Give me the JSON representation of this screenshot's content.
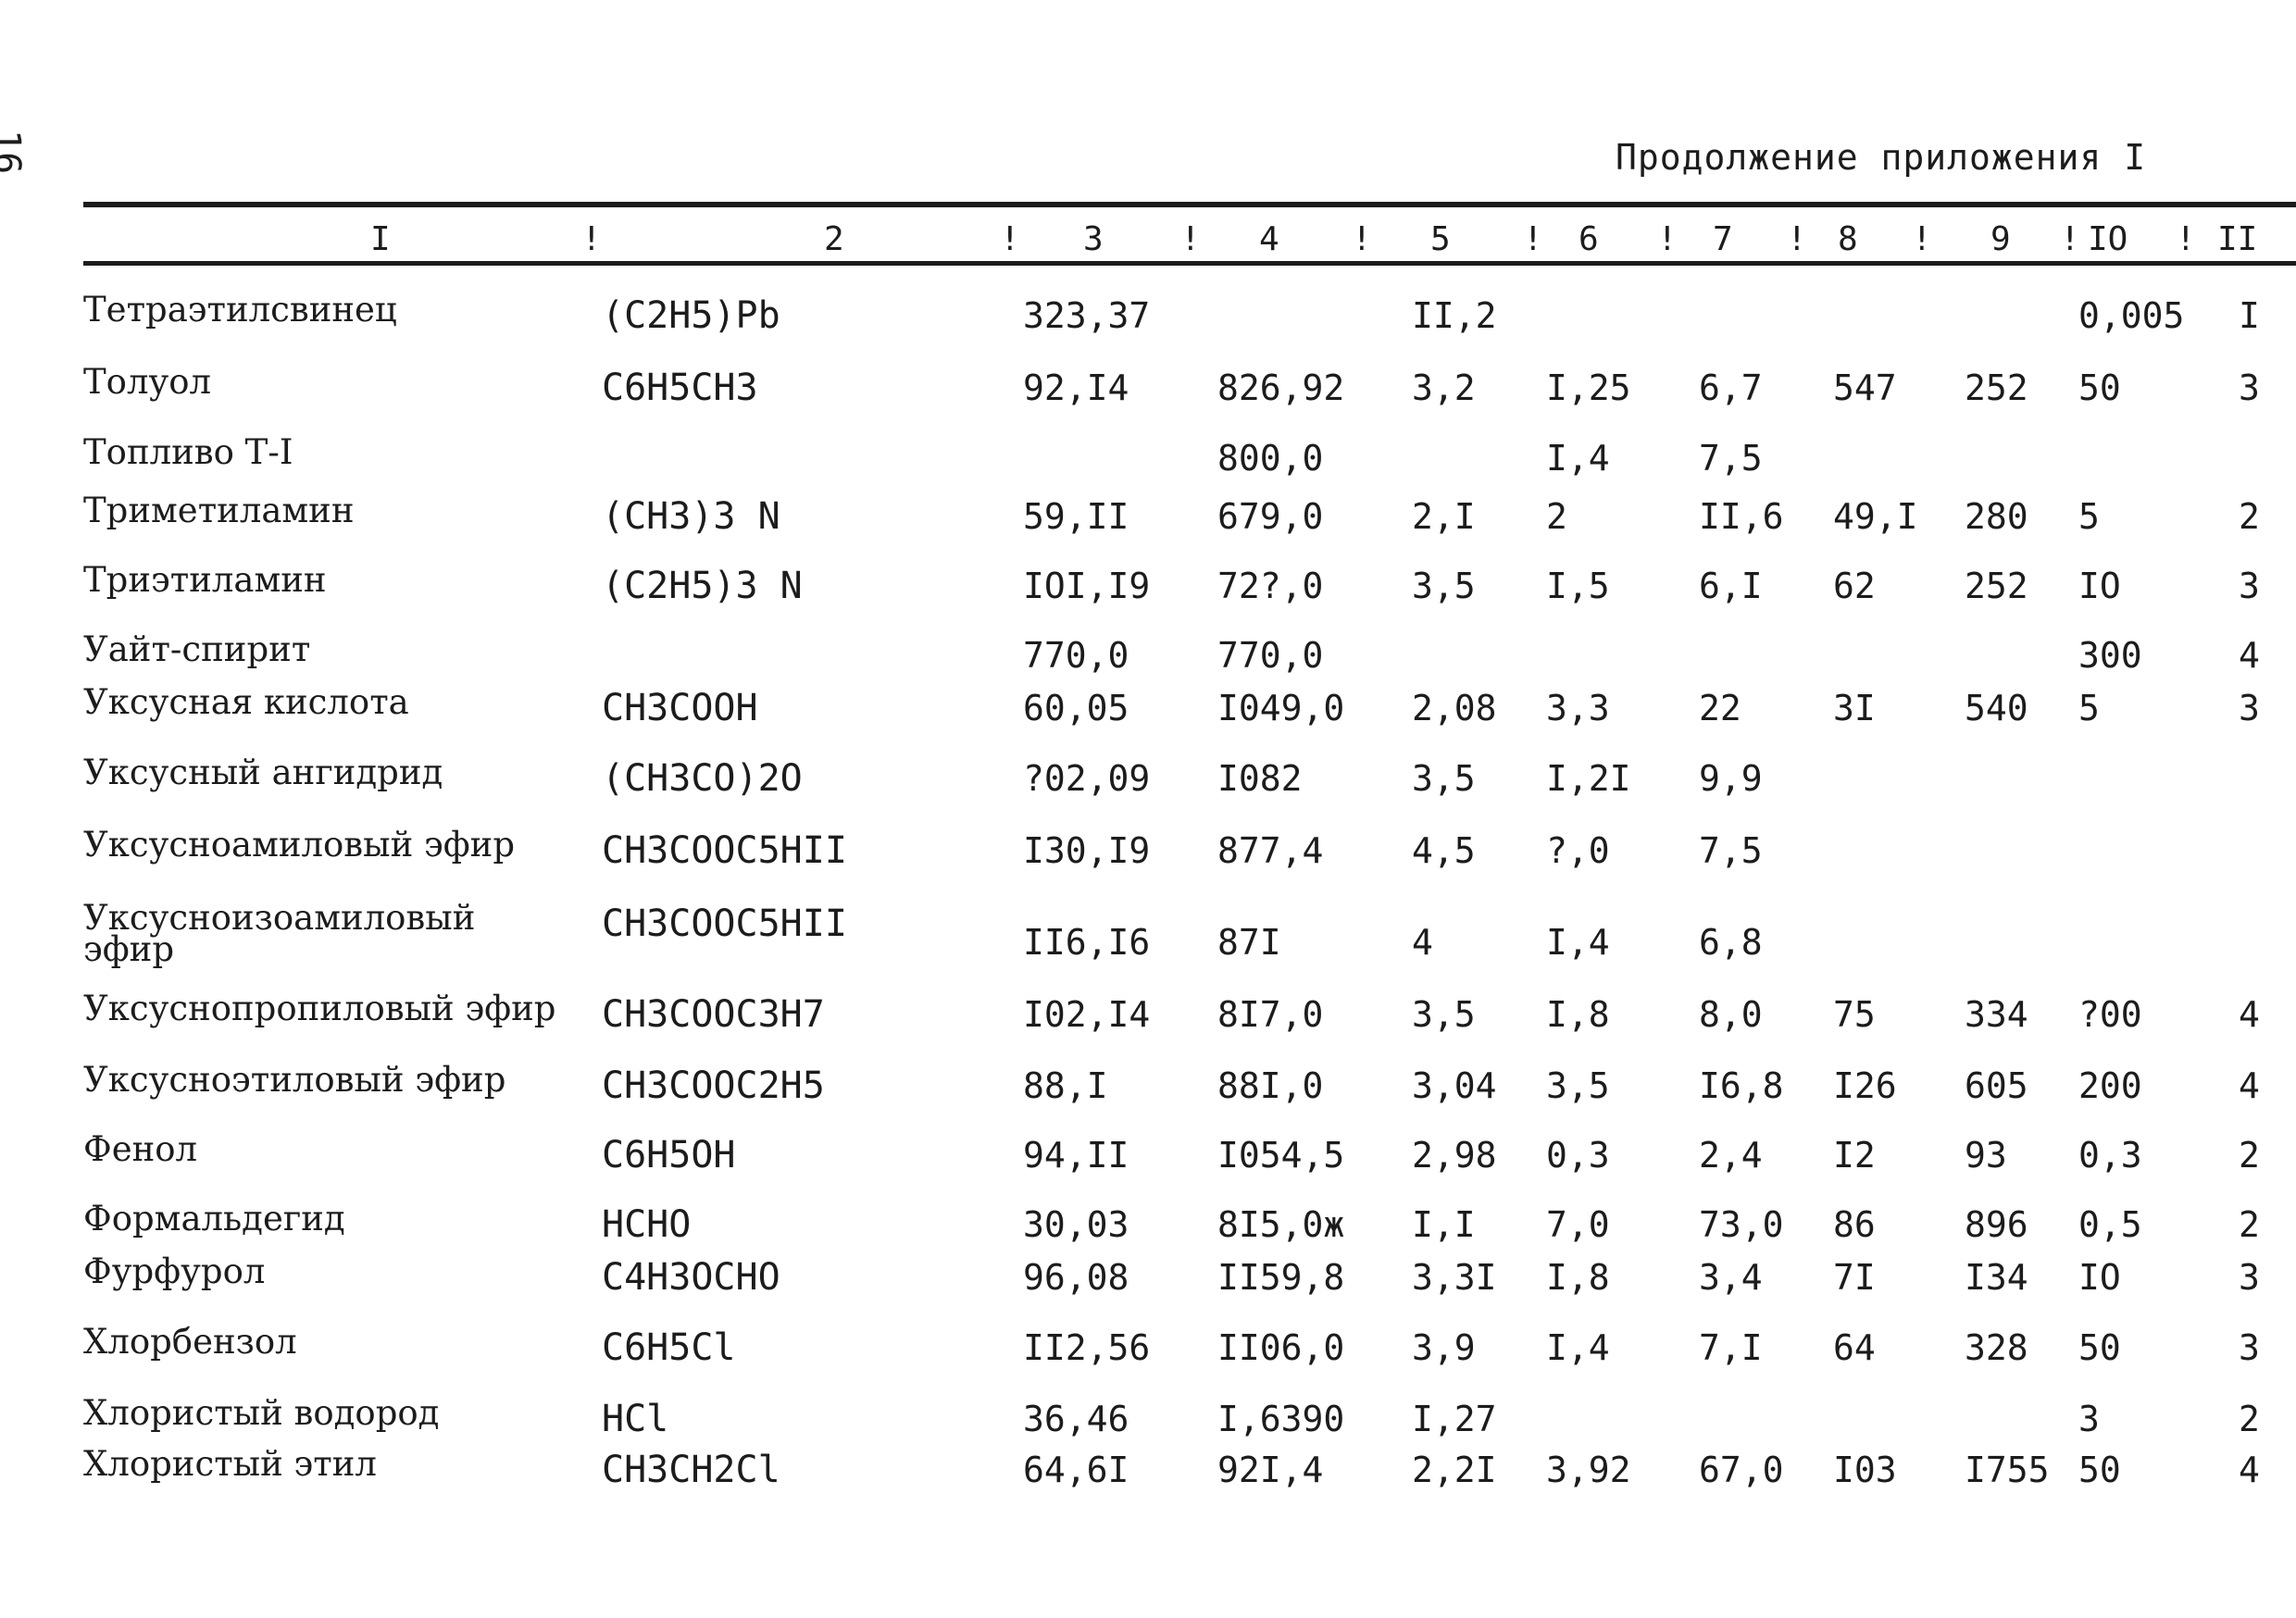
{
  "page_number": "16",
  "header_title": "Продолжение приложения I",
  "column_numbers": [
    "I",
    "2",
    "3",
    "4",
    "5",
    "6",
    "7",
    "8",
    "9",
    "IO",
    "II"
  ],
  "rows": [
    {
      "name": "Тетраэтилсвинец",
      "formula": "(C2H5)Pb",
      "c3": "323,37",
      "c4": "",
      "c5": "II,2",
      "c6": "",
      "c7": "",
      "c8": "",
      "c9": "",
      "c10": "0,005",
      "c11": "I"
    },
    {
      "name": "Толуол",
      "formula": "C6H5CH3",
      "c3": "92,I4",
      "c4": "826,92",
      "c5": "3,2",
      "c6": "I,25",
      "c7": "6,7",
      "c8": "547",
      "c9": "252",
      "c10": "50",
      "c11": "3"
    },
    {
      "name": "Топливо Т-I",
      "formula": "",
      "c3": "",
      "c4": "800,0",
      "c5": "",
      "c6": "I,4",
      "c7": "7,5",
      "c8": "",
      "c9": "",
      "c10": "",
      "c11": ""
    },
    {
      "name": "Триметиламин",
      "formula": "(CH3)3 N",
      "c3": "59,II",
      "c4": "679,0",
      "c5": "2,I",
      "c6": "2",
      "c7": "II,6",
      "c8": "49,I",
      "c9": "280",
      "c10": "5",
      "c11": "2"
    },
    {
      "name": "Триэтиламин",
      "formula": "(C2H5)3 N",
      "c3": "IOI,I9",
      "c4": "72?,0",
      "c5": "3,5",
      "c6": "I,5",
      "c7": "6,I",
      "c8": "62",
      "c9": "252",
      "c10": "IO",
      "c11": "3"
    },
    {
      "name": "Уайт-спирит",
      "formula": "",
      "c3": "770,0",
      "c4": "770,0",
      "c5": "",
      "c6": "",
      "c7": "",
      "c8": "",
      "c9": "",
      "c10": "300",
      "c11": "4"
    },
    {
      "name": "Уксусная кислота",
      "formula": "CH3COOH",
      "c3": "60,05",
      "c4": "I049,0",
      "c5": "2,08",
      "c6": "3,3",
      "c7": "22",
      "c8": "3I",
      "c9": "540",
      "c10": "5",
      "c11": "3"
    },
    {
      "name": "Уксусный ангидрид",
      "formula": "(CH3CO)2O",
      "c3": "?02,09",
      "c4": "I082",
      "c5": "3,5",
      "c6": "I,2I",
      "c7": "9,9",
      "c8": "",
      "c9": "",
      "c10": "",
      "c11": ""
    },
    {
      "name": "Уксусноамиловый эфир",
      "formula": "CH3COOC5HII",
      "c3": "I30,I9",
      "c4": "877,4",
      "c5": "4,5",
      "c6": "?,0",
      "c7": "7,5",
      "c8": "",
      "c9": "",
      "c10": "",
      "c11": ""
    },
    {
      "name": "Уксусноизоамиловый эфир",
      "formula": "CH3COOC5HII",
      "c3": "II6,I6",
      "c4": "87I",
      "c5": "4",
      "c6": "I,4",
      "c7": "6,8",
      "c8": "",
      "c9": "",
      "c10": "",
      "c11": ""
    },
    {
      "name": "Уксуснопропиловый эфир",
      "formula": "CH3COOC3H7",
      "c3": "I02,I4",
      "c4": "8I7,0",
      "c5": "3,5",
      "c6": "I,8",
      "c7": "8,0",
      "c8": "75",
      "c9": "334",
      "c10": "?00",
      "c11": "4"
    },
    {
      "name": "Уксусноэтиловый эфир",
      "formula": "CH3COOC2H5",
      "c3": "88,I",
      "c4": "88I,0",
      "c5": "3,04",
      "c6": "3,5",
      "c7": "I6,8",
      "c8": "I26",
      "c9": "605",
      "c10": "200",
      "c11": "4"
    },
    {
      "name": "Фенол",
      "formula": "C6H5OH",
      "c3": "94,II",
      "c4": "I054,5",
      "c5": "2,98",
      "c6": "0,3",
      "c7": "2,4",
      "c8": "I2",
      "c9": "93",
      "c10": "0,3",
      "c11": "2"
    },
    {
      "name": "Формальдегид",
      "formula": "HCHO",
      "c3": "30,03",
      "c4": "8I5,0ж",
      "c5": "I,I",
      "c6": "7,0",
      "c7": "73,0",
      "c8": "86",
      "c9": "896",
      "c10": "0,5",
      "c11": "2"
    },
    {
      "name": "Фурфурол",
      "formula": "C4H3OCHO",
      "c3": "96,08",
      "c4": "II59,8",
      "c5": "3,3I",
      "c6": "I,8",
      "c7": "3,4",
      "c8": "7I",
      "c9": "I34",
      "c10": "IO",
      "c11": "3"
    },
    {
      "name": "Хлорбензол",
      "formula": "C6H5Cl",
      "c3": "II2,56",
      "c4": "II06,0",
      "c5": "3,9",
      "c6": "I,4",
      "c7": "7,I",
      "c8": "64",
      "c9": "328",
      "c10": "50",
      "c11": "3"
    },
    {
      "name": "Хлористый водород",
      "formula": "HCl",
      "c3": "36,46",
      "c4": "I,6390",
      "c5": "I,27",
      "c6": "",
      "c7": "",
      "c8": "",
      "c9": "",
      "c10": "3",
      "c11": "2"
    },
    {
      "name": "Хлористый этил",
      "formula": "CH3CH2Cl",
      "c3": "64,6I",
      "c4": "92I,4",
      "c5": "2,2I",
      "c6": "3,92",
      "c7": "67,0",
      "c8": "I03",
      "c9": "I755",
      "c10": "50",
      "c11": "4"
    }
  ]
}
